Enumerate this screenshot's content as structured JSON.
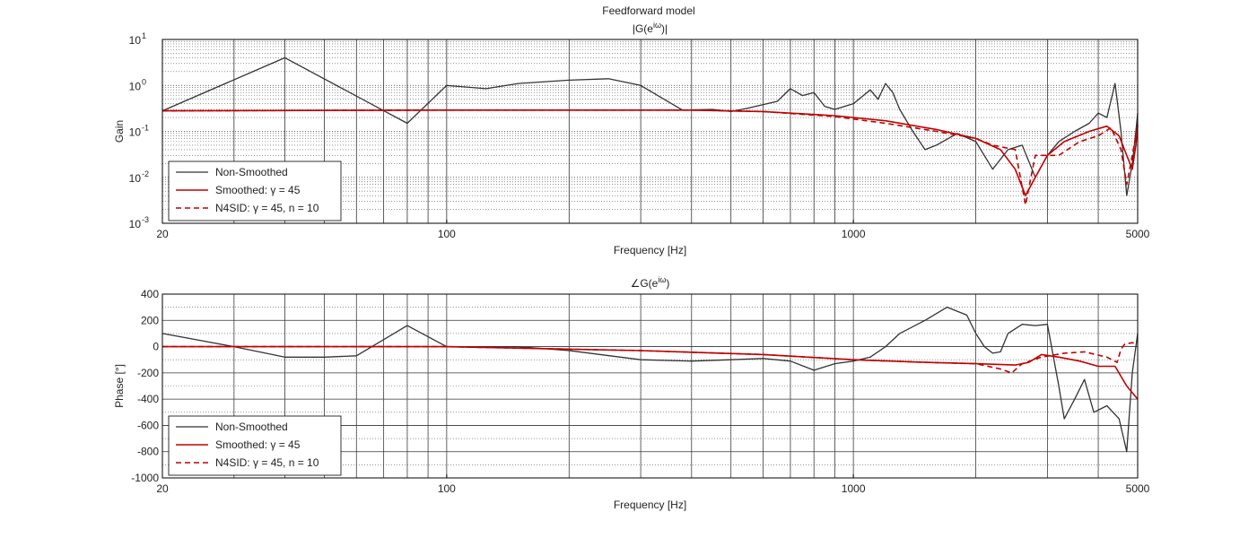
{
  "figure": {
    "title": "Feedforward model"
  },
  "chart_data": [
    {
      "type": "line",
      "title": "|G(e",
      "title_sup": "iω",
      "title_end": ")|",
      "xlabel": "Frequency [Hz]",
      "ylabel": "Gain",
      "xscale": "log",
      "yscale": "log",
      "xlim": [
        20,
        5000
      ],
      "ylim": [
        0.001,
        10
      ],
      "xticks": [
        {
          "value": 20,
          "label": "20"
        },
        {
          "value": 100,
          "label": "100"
        },
        {
          "value": 1000,
          "label": "1000"
        },
        {
          "value": 5000,
          "label": "5000"
        }
      ],
      "yticks": [
        {
          "value": 0.001,
          "base": "10",
          "exp": "-3"
        },
        {
          "value": 0.01,
          "base": "10",
          "exp": "-2"
        },
        {
          "value": 0.1,
          "base": "10",
          "exp": "-1"
        },
        {
          "value": 1,
          "base": "10",
          "exp": "0"
        },
        {
          "value": 10,
          "base": "10",
          "exp": "1"
        }
      ],
      "grid": true,
      "legend": "bottom-left",
      "series": [
        {
          "name": "Non-Smoothed",
          "color": "#333333",
          "style": "solid",
          "points": [
            [
              20,
              0.28
            ],
            [
              40,
              4.0
            ],
            [
              80,
              0.15
            ],
            [
              100,
              1.0
            ],
            [
              125,
              0.85
            ],
            [
              150,
              1.1
            ],
            [
              200,
              1.3
            ],
            [
              250,
              1.4
            ],
            [
              300,
              1.0
            ],
            [
              380,
              0.29
            ],
            [
              450,
              0.3
            ],
            [
              500,
              0.27
            ],
            [
              550,
              0.32
            ],
            [
              650,
              0.45
            ],
            [
              700,
              0.85
            ],
            [
              750,
              0.6
            ],
            [
              800,
              0.7
            ],
            [
              850,
              0.35
            ],
            [
              900,
              0.3
            ],
            [
              1000,
              0.4
            ],
            [
              1100,
              0.8
            ],
            [
              1150,
              0.5
            ],
            [
              1200,
              1.1
            ],
            [
              1250,
              0.7
            ],
            [
              1300,
              0.3
            ],
            [
              1400,
              0.1
            ],
            [
              1500,
              0.04
            ],
            [
              1600,
              0.05
            ],
            [
              1800,
              0.09
            ],
            [
              2000,
              0.06
            ],
            [
              2200,
              0.015
            ],
            [
              2400,
              0.04
            ],
            [
              2600,
              0.05
            ],
            [
              2800,
              0.01
            ],
            [
              3000,
              0.03
            ],
            [
              3200,
              0.06
            ],
            [
              3500,
              0.1
            ],
            [
              3800,
              0.15
            ],
            [
              4000,
              0.25
            ],
            [
              4200,
              0.2
            ],
            [
              4400,
              1.1
            ],
            [
              4550,
              0.1
            ],
            [
              4700,
              0.004
            ],
            [
              4850,
              0.02
            ],
            [
              4950,
              0.1
            ],
            [
              5000,
              0.25
            ]
          ]
        },
        {
          "name": "Smoothed: γ = 45",
          "color": "#c00000",
          "style": "solid",
          "points": [
            [
              20,
              0.28
            ],
            [
              100,
              0.29
            ],
            [
              400,
              0.29
            ],
            [
              600,
              0.27
            ],
            [
              900,
              0.22
            ],
            [
              1200,
              0.17
            ],
            [
              1600,
              0.11
            ],
            [
              2000,
              0.07
            ],
            [
              2300,
              0.04
            ],
            [
              2500,
              0.015
            ],
            [
              2650,
              0.004
            ],
            [
              2800,
              0.01
            ],
            [
              3000,
              0.03
            ],
            [
              3300,
              0.06
            ],
            [
              3800,
              0.1
            ],
            [
              4200,
              0.13
            ],
            [
              4500,
              0.08
            ],
            [
              4700,
              0.03
            ],
            [
              4850,
              0.015
            ],
            [
              4950,
              0.05
            ],
            [
              5000,
              0.14
            ]
          ]
        },
        {
          "name": "N4SID: γ = 45, n = 10",
          "color": "#c00000",
          "style": "dashed",
          "points": [
            [
              20,
              0.28
            ],
            [
              100,
              0.29
            ],
            [
              400,
              0.29
            ],
            [
              600,
              0.27
            ],
            [
              900,
              0.21
            ],
            [
              1200,
              0.15
            ],
            [
              1600,
              0.1
            ],
            [
              2000,
              0.07
            ],
            [
              2200,
              0.05
            ],
            [
              2500,
              0.04
            ],
            [
              2650,
              0.0025
            ],
            [
              2800,
              0.03
            ],
            [
              3200,
              0.03
            ],
            [
              3600,
              0.06
            ],
            [
              4000,
              0.08
            ],
            [
              4300,
              0.12
            ],
            [
              4550,
              0.04
            ],
            [
              4700,
              0.007
            ],
            [
              4850,
              0.03
            ],
            [
              5000,
              0.13
            ]
          ]
        }
      ]
    },
    {
      "type": "line",
      "title": "∠G(e",
      "title_sup": "iω",
      "title_end": ")",
      "xlabel": "Frequency [Hz]",
      "ylabel": "Phase [°]",
      "xscale": "log",
      "yscale": "linear",
      "xlim": [
        20,
        5000
      ],
      "ylim": [
        -1000,
        400
      ],
      "xticks": [
        {
          "value": 20,
          "label": "20"
        },
        {
          "value": 100,
          "label": "100"
        },
        {
          "value": 1000,
          "label": "1000"
        },
        {
          "value": 5000,
          "label": "5000"
        }
      ],
      "yticks": [
        {
          "value": 400,
          "label": "400"
        },
        {
          "value": 200,
          "label": "200"
        },
        {
          "value": 0,
          "label": "0"
        },
        {
          "value": -200,
          "label": "-200"
        },
        {
          "value": -400,
          "label": "-400"
        },
        {
          "value": -600,
          "label": "-600"
        },
        {
          "value": -800,
          "label": "-800"
        },
        {
          "value": -1000,
          "label": "-1000"
        }
      ],
      "grid": true,
      "legend": "bottom-left",
      "series": [
        {
          "name": "Non-Smoothed",
          "color": "#333333",
          "style": "solid",
          "points": [
            [
              20,
              100
            ],
            [
              30,
              0
            ],
            [
              40,
              -80
            ],
            [
              50,
              -80
            ],
            [
              60,
              -70
            ],
            [
              80,
              160
            ],
            [
              100,
              0
            ],
            [
              150,
              0
            ],
            [
              200,
              -30
            ],
            [
              300,
              -100
            ],
            [
              400,
              -110
            ],
            [
              500,
              -100
            ],
            [
              600,
              -90
            ],
            [
              700,
              -110
            ],
            [
              800,
              -180
            ],
            [
              900,
              -130
            ],
            [
              1000,
              -110
            ],
            [
              1100,
              -80
            ],
            [
              1200,
              0
            ],
            [
              1300,
              100
            ],
            [
              1500,
              200
            ],
            [
              1700,
              300
            ],
            [
              1900,
              240
            ],
            [
              2000,
              100
            ],
            [
              2100,
              0
            ],
            [
              2200,
              -50
            ],
            [
              2300,
              -40
            ],
            [
              2400,
              100
            ],
            [
              2600,
              170
            ],
            [
              2800,
              160
            ],
            [
              3000,
              170
            ],
            [
              3200,
              -300
            ],
            [
              3300,
              -550
            ],
            [
              3500,
              -400
            ],
            [
              3700,
              -250
            ],
            [
              3900,
              -500
            ],
            [
              4200,
              -450
            ],
            [
              4500,
              -550
            ],
            [
              4700,
              -800
            ],
            [
              4850,
              -200
            ],
            [
              5000,
              100
            ]
          ]
        },
        {
          "name": "Smoothed: γ = 45",
          "color": "#c00000",
          "style": "solid",
          "points": [
            [
              20,
              0
            ],
            [
              100,
              0
            ],
            [
              300,
              -30
            ],
            [
              600,
              -60
            ],
            [
              1000,
              -100
            ],
            [
              1500,
              -120
            ],
            [
              2000,
              -130
            ],
            [
              2500,
              -140
            ],
            [
              2700,
              -120
            ],
            [
              2900,
              -60
            ],
            [
              3200,
              -80
            ],
            [
              3600,
              -110
            ],
            [
              4000,
              -150
            ],
            [
              4400,
              -150
            ],
            [
              4700,
              -300
            ],
            [
              5000,
              -400
            ]
          ]
        },
        {
          "name": "N4SID: γ = 45, n = 10",
          "color": "#c00000",
          "style": "dashed",
          "points": [
            [
              20,
              0
            ],
            [
              100,
              0
            ],
            [
              300,
              -30
            ],
            [
              600,
              -60
            ],
            [
              1000,
              -100
            ],
            [
              1500,
              -120
            ],
            [
              2000,
              -130
            ],
            [
              2300,
              -170
            ],
            [
              2450,
              -200
            ],
            [
              2600,
              -130
            ],
            [
              2900,
              -80
            ],
            [
              3300,
              -50
            ],
            [
              3700,
              -40
            ],
            [
              4200,
              -80
            ],
            [
              4450,
              -120
            ],
            [
              4550,
              -20
            ],
            [
              4650,
              20
            ],
            [
              4850,
              30
            ],
            [
              5000,
              20
            ]
          ]
        }
      ]
    }
  ]
}
